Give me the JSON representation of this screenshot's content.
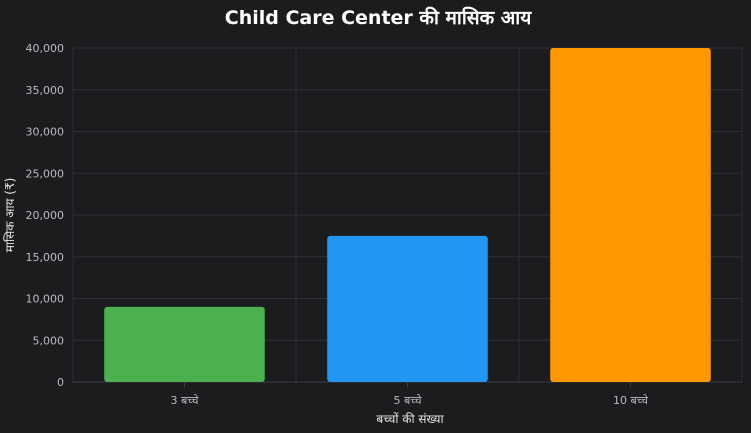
{
  "chart_data": {
    "type": "bar",
    "title": "Child Care Center की मासिक आय",
    "xlabel": "बच्चों की संख्या",
    "ylabel": "मासिक आय (₹)",
    "categories": [
      "3 बच्चे",
      "5 बच्चे",
      "10 बच्चे"
    ],
    "values": [
      9000,
      17500,
      40000
    ],
    "colors": [
      "#4caf50",
      "#2196f3",
      "#ff9800"
    ],
    "ylim": [
      0,
      40000
    ],
    "yticks": [
      0,
      5000,
      10000,
      15000,
      20000,
      25000,
      30000,
      35000,
      40000
    ],
    "ytick_labels": [
      "0",
      "5,000",
      "10,000",
      "15,000",
      "20,000",
      "25,000",
      "30,000",
      "35,000",
      "40,000"
    ],
    "grid": true,
    "legend": false
  }
}
